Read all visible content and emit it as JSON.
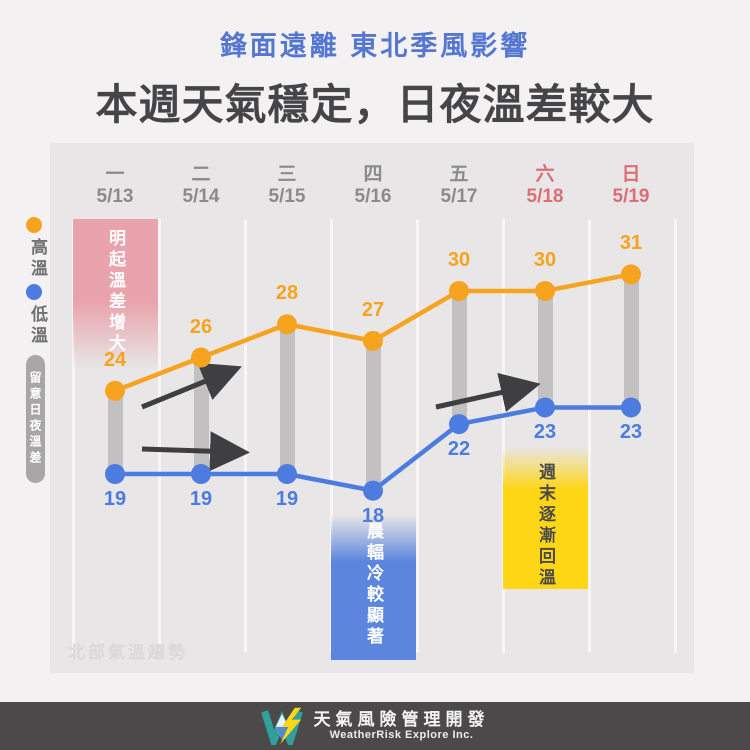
{
  "header": {
    "subtitle": "鋒面遠離 東北季風影響",
    "title": "本週天氣穩定，日夜溫差較大"
  },
  "legend": {
    "high_label": "高溫",
    "low_label": "低溫",
    "note_pill": "留意日夜溫差"
  },
  "chart_data": {
    "type": "line",
    "title": "北部氣溫趨勢",
    "categories": [
      {
        "weekday": "一",
        "date": "5/13",
        "weekend": false
      },
      {
        "weekday": "二",
        "date": "5/14",
        "weekend": false
      },
      {
        "weekday": "三",
        "date": "5/15",
        "weekend": false
      },
      {
        "weekday": "四",
        "date": "5/16",
        "weekend": false
      },
      {
        "weekday": "五",
        "date": "5/17",
        "weekend": false
      },
      {
        "weekday": "六",
        "date": "5/18",
        "weekend": true
      },
      {
        "weekday": "日",
        "date": "5/19",
        "weekend": true
      }
    ],
    "series": [
      {
        "name": "高溫",
        "values": [
          24,
          26,
          28,
          27,
          30,
          30,
          31
        ],
        "color": "#F6A41F"
      },
      {
        "name": "低溫",
        "values": [
          19,
          19,
          19,
          18,
          22,
          23,
          23
        ],
        "color": "#4C7CE0"
      }
    ],
    "ylim": [
      16,
      33
    ],
    "grid": true,
    "legend_position": "left",
    "annotations": [
      {
        "text": "明起溫差增大",
        "column": 0,
        "style": "pink"
      },
      {
        "text": "晨輻冷較顯著",
        "column": 3,
        "style": "blue"
      },
      {
        "text": "週末逐漸回溫",
        "column": 5,
        "style": "yellow"
      }
    ],
    "trend_arrows": [
      "day1-2-high-rising",
      "day1-3-low-flat",
      "day5-6-low-rising"
    ]
  },
  "colors": {
    "high": "#F6A41F",
    "low": "#4C7CE0",
    "weekday": "#8B8B8B",
    "weekend": "#DB6E76",
    "bar": "#C2C0C0",
    "arrow": "#3F3F41",
    "pink_box": "#E9A3AC",
    "blue_box": "#5C86DE",
    "yellow_box": "#FFD616",
    "yellow_box_text": "#4A4A4A",
    "box_text": "#FFFFFF",
    "subtitle": "#5577D2",
    "title": "#454547"
  },
  "footer": {
    "company": "天氣風險管理開發",
    "company_en": "WeatherRisk Explore Inc."
  }
}
